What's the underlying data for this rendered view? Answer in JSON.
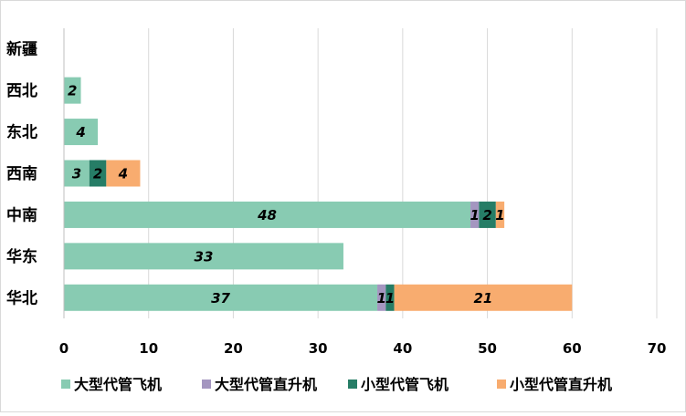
{
  "chart_data": {
    "type": "bar",
    "orientation": "horizontal",
    "stacked": true,
    "categories": [
      "新疆",
      "西北",
      "东北",
      "西南",
      "中南",
      "华东",
      "华北"
    ],
    "series": [
      {
        "name": "大型代管飞机",
        "color": "#88cbb2",
        "values": [
          0,
          2,
          4,
          3,
          48,
          33,
          37
        ]
      },
      {
        "name": "大型代管直升机",
        "color": "#a496c0",
        "values": [
          0,
          0,
          0,
          0,
          1,
          0,
          1
        ]
      },
      {
        "name": "小型代管飞机",
        "color": "#267d66",
        "values": [
          0,
          0,
          0,
          2,
          2,
          0,
          1
        ]
      },
      {
        "name": "小型代管直升机",
        "color": "#f8ac6f",
        "values": [
          0,
          0,
          0,
          4,
          1,
          0,
          21
        ]
      }
    ],
    "xlim": [
      0,
      70
    ],
    "xticks": [
      0,
      10,
      20,
      30,
      40,
      50,
      60,
      70
    ],
    "grid": true,
    "legend_position": "bottom",
    "title": "",
    "xlabel": "",
    "ylabel": ""
  }
}
